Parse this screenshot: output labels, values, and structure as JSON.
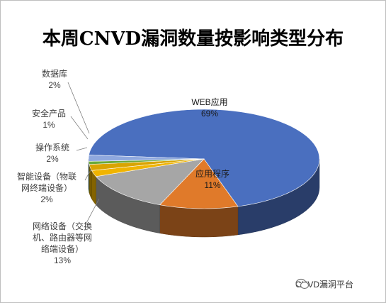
{
  "chart_data": {
    "type": "pie",
    "title": "本周CNVD漏洞数量按影响类型分布",
    "categories": [
      "WEB应用",
      "应用程序",
      "网络设备（交换机、路由器等网络端设备）",
      "智能设备（物联网终端设备）",
      "操作系统",
      "安全产品",
      "数据库"
    ],
    "values": [
      69,
      11,
      13,
      2,
      2,
      1,
      2
    ],
    "labels": [
      {
        "lines": [
          "WEB应用",
          "69%"
        ]
      },
      {
        "lines": [
          "应用程序",
          "11%"
        ]
      },
      {
        "lines": [
          "网络设备（交换",
          "机、路由器等网",
          "络端设备）",
          "13%"
        ]
      },
      {
        "lines": [
          "智能设备（物联",
          "网终端设备）",
          "2%"
        ]
      },
      {
        "lines": [
          "操作系统",
          "2%"
        ]
      },
      {
        "lines": [
          "安全产品",
          "1%"
        ]
      },
      {
        "lines": [
          "数据库",
          "2%"
        ]
      }
    ],
    "colors": [
      "#4a6fbf",
      "#e07a2a",
      "#a6a6a6",
      "#f0b400",
      "#d9a400",
      "#6aaa3a",
      "#8fa8de"
    ],
    "style": "3d-pie"
  },
  "watermark": {
    "text": "CNVD漏洞平台",
    "icon": "wechat-icon"
  }
}
